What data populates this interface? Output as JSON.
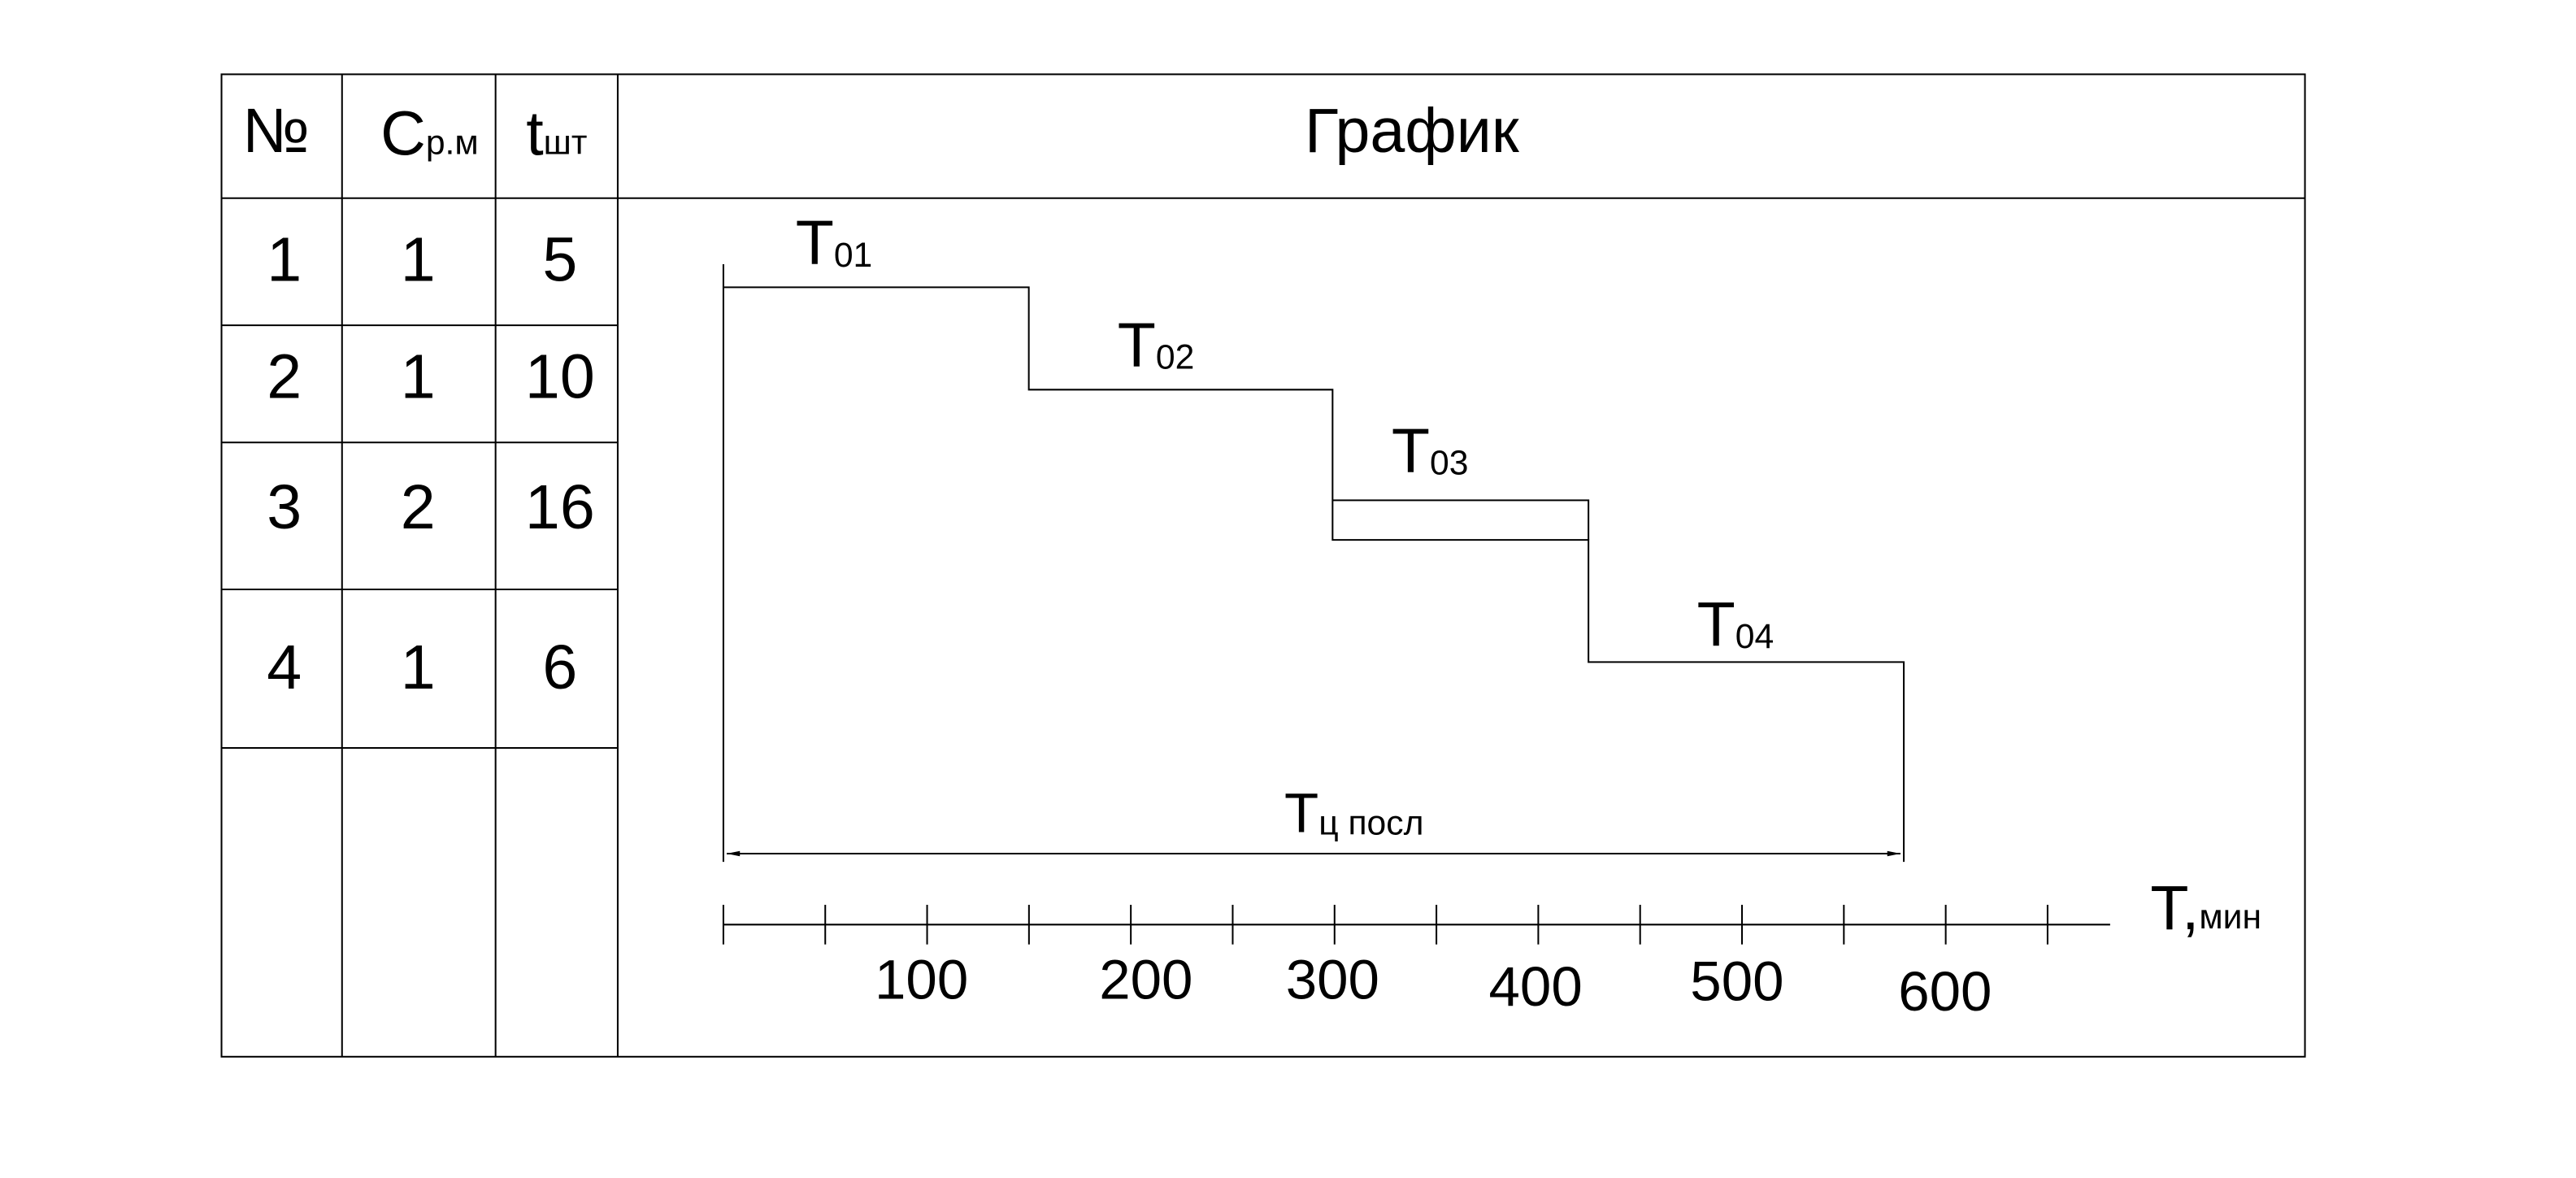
{
  "table": {
    "headers": [
      {
        "main": "№"
      },
      {
        "main": "C",
        "sub": "р.м"
      },
      {
        "main": "t",
        "sub": "шт"
      },
      {
        "main": "График"
      }
    ],
    "rows": [
      [
        "1",
        "1",
        "5"
      ],
      [
        "2",
        "1",
        "10"
      ],
      [
        "3",
        "2",
        "16"
      ],
      [
        "4",
        "1",
        "6"
      ]
    ]
  },
  "graph": {
    "segments": [
      {
        "main": "T",
        "sub": "01"
      },
      {
        "main": "T",
        "sub": "02"
      },
      {
        "main": "T",
        "sub": "03"
      },
      {
        "main": "T",
        "sub": "04"
      }
    ],
    "cycle": {
      "main": "T",
      "sub": "ц посл"
    },
    "axis_label": {
      "main": "T,",
      "sub": "мин"
    },
    "ticks": [
      "100",
      "200",
      "300",
      "400",
      "500",
      "600"
    ]
  }
}
